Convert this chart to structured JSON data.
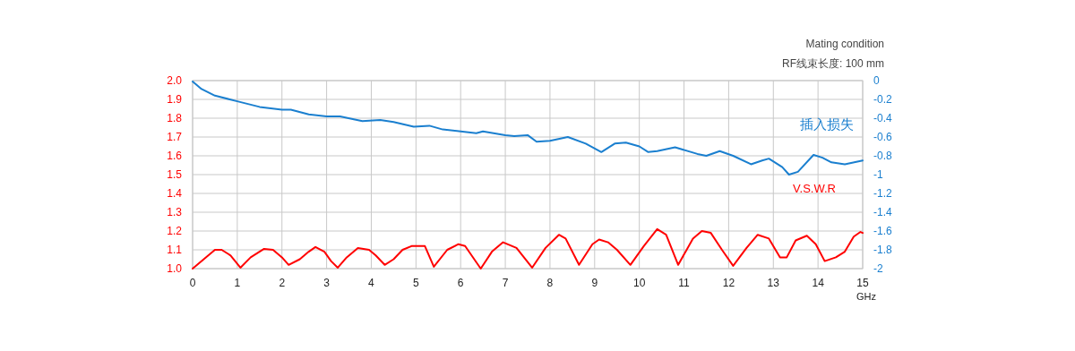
{
  "chart_data": {
    "type": "line",
    "xlabel": "GHz",
    "annotations": [
      "Mating condition",
      "RF线束长度: 100 mm"
    ],
    "xlim": [
      0,
      15
    ],
    "xticks": [
      0,
      1,
      2,
      3,
      4,
      5,
      6,
      7,
      8,
      9,
      10,
      11,
      12,
      13,
      14,
      15
    ],
    "ylim": [
      1,
      2
    ],
    "yticks": [
      {
        "value": 1,
        "label": "1.0"
      },
      {
        "value": 1.1,
        "label": "1.1"
      },
      {
        "value": 1.2,
        "label": "1.2"
      },
      {
        "value": 1.3,
        "label": "1.3"
      },
      {
        "value": 1.4,
        "label": "1.4"
      },
      {
        "value": 1.5,
        "label": "1.5"
      },
      {
        "value": 1.6,
        "label": "1.6"
      },
      {
        "value": 1.7,
        "label": "1.7"
      },
      {
        "value": 1.8,
        "label": "1.8"
      },
      {
        "value": 1.9,
        "label": "1.9"
      },
      {
        "value": 2,
        "label": "2.0"
      }
    ],
    "y2lim": [
      -2,
      0
    ],
    "y2ticks": [
      -2,
      -1.8,
      -1.6,
      -1.4,
      -1.2,
      -1,
      -0.8,
      -0.6,
      -0.4,
      -0.2,
      0
    ],
    "grid": true,
    "series": [
      {
        "name": "V.S.W.R",
        "color": "#ff0000",
        "x": [
          0,
          0.25,
          0.5,
          0.65,
          0.85,
          1.07,
          1.3,
          1.6,
          1.8,
          2.0,
          2.15,
          2.4,
          2.6,
          2.75,
          2.95,
          3.1,
          3.25,
          3.45,
          3.7,
          3.95,
          4.1,
          4.3,
          4.5,
          4.7,
          4.9,
          5.2,
          5.4,
          5.7,
          5.95,
          6.1,
          6.45,
          6.7,
          6.95,
          7.25,
          7.6,
          7.9,
          8.2,
          8.35,
          8.65,
          8.95,
          9.1,
          9.3,
          9.5,
          9.8,
          10.1,
          10.4,
          10.6,
          10.87,
          11.2,
          11.4,
          11.6,
          11.85,
          12.1,
          12.4,
          12.65,
          12.9,
          13.15,
          13.3,
          13.5,
          13.75,
          13.95,
          14.15,
          14.4,
          14.6,
          14.8,
          14.95,
          15
        ],
        "values": [
          1.0,
          1.05,
          1.1,
          1.1,
          1.07,
          1.005,
          1.06,
          1.105,
          1.1,
          1.06,
          1.02,
          1.05,
          1.09,
          1.115,
          1.09,
          1.04,
          1.005,
          1.06,
          1.11,
          1.1,
          1.07,
          1.02,
          1.05,
          1.1,
          1.12,
          1.12,
          1.01,
          1.1,
          1.13,
          1.12,
          1.0,
          1.09,
          1.14,
          1.11,
          1.005,
          1.11,
          1.18,
          1.16,
          1.02,
          1.13,
          1.155,
          1.14,
          1.1,
          1.02,
          1.12,
          1.21,
          1.18,
          1.02,
          1.16,
          1.2,
          1.19,
          1.1,
          1.015,
          1.11,
          1.18,
          1.16,
          1.06,
          1.06,
          1.15,
          1.175,
          1.13,
          1.04,
          1.06,
          1.09,
          1.17,
          1.195,
          1.19
        ]
      },
      {
        "name": "插入损失",
        "color": "#1a7fcf",
        "axis": "y2",
        "x": [
          0,
          0.2,
          0.5,
          1,
          1.5,
          2,
          2.2,
          2.6,
          3,
          3.3,
          3.8,
          4.2,
          4.5,
          4.95,
          5.3,
          5.6,
          6,
          6.35,
          6.5,
          7,
          7.2,
          7.5,
          7.7,
          8,
          8.4,
          8.8,
          9.15,
          9.45,
          9.7,
          10.0,
          10.2,
          10.4,
          10.8,
          11.3,
          11.5,
          11.8,
          12.1,
          12.5,
          12.75,
          12.9,
          13.2,
          13.35,
          13.55,
          13.9,
          14.1,
          14.3,
          14.6,
          15
        ],
        "values": [
          -0.01,
          -0.09,
          -0.16,
          -0.22,
          -0.28,
          -0.31,
          -0.31,
          -0.36,
          -0.38,
          -0.38,
          -0.43,
          -0.42,
          -0.44,
          -0.49,
          -0.48,
          -0.52,
          -0.54,
          -0.56,
          -0.54,
          -0.58,
          -0.59,
          -0.58,
          -0.65,
          -0.64,
          -0.6,
          -0.67,
          -0.76,
          -0.67,
          -0.66,
          -0.7,
          -0.76,
          -0.75,
          -0.71,
          -0.78,
          -0.8,
          -0.75,
          -0.8,
          -0.89,
          -0.85,
          -0.83,
          -0.92,
          -1.0,
          -0.97,
          -0.79,
          -0.82,
          -0.87,
          -0.89,
          -0.85
        ]
      }
    ]
  }
}
